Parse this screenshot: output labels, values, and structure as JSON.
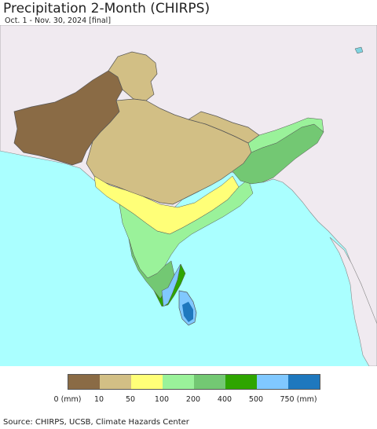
{
  "header": {
    "title": "Precipitation 2-Month (CHIRPS)",
    "subtitle": "Oct. 1 - Nov. 30, 2024 [final]"
  },
  "colors": {
    "ocean": "#aaffff",
    "land_outside": "#f0eaf0",
    "border": "#555555",
    "water_body": "#7fd4e0"
  },
  "legend": {
    "labels": [
      "0 (mm)",
      "10",
      "50",
      "100",
      "200",
      "400",
      "500",
      "750 (mm)"
    ],
    "colors": [
      "#8a6b45",
      "#d2bf85",
      "#ffff78",
      "#9af29a",
      "#73c873",
      "#2ea500",
      "#80c8ff",
      "#1e78be"
    ]
  },
  "footer": {
    "source": "Source: CHIRPS, UCSB, Climate Hazards Center"
  }
}
